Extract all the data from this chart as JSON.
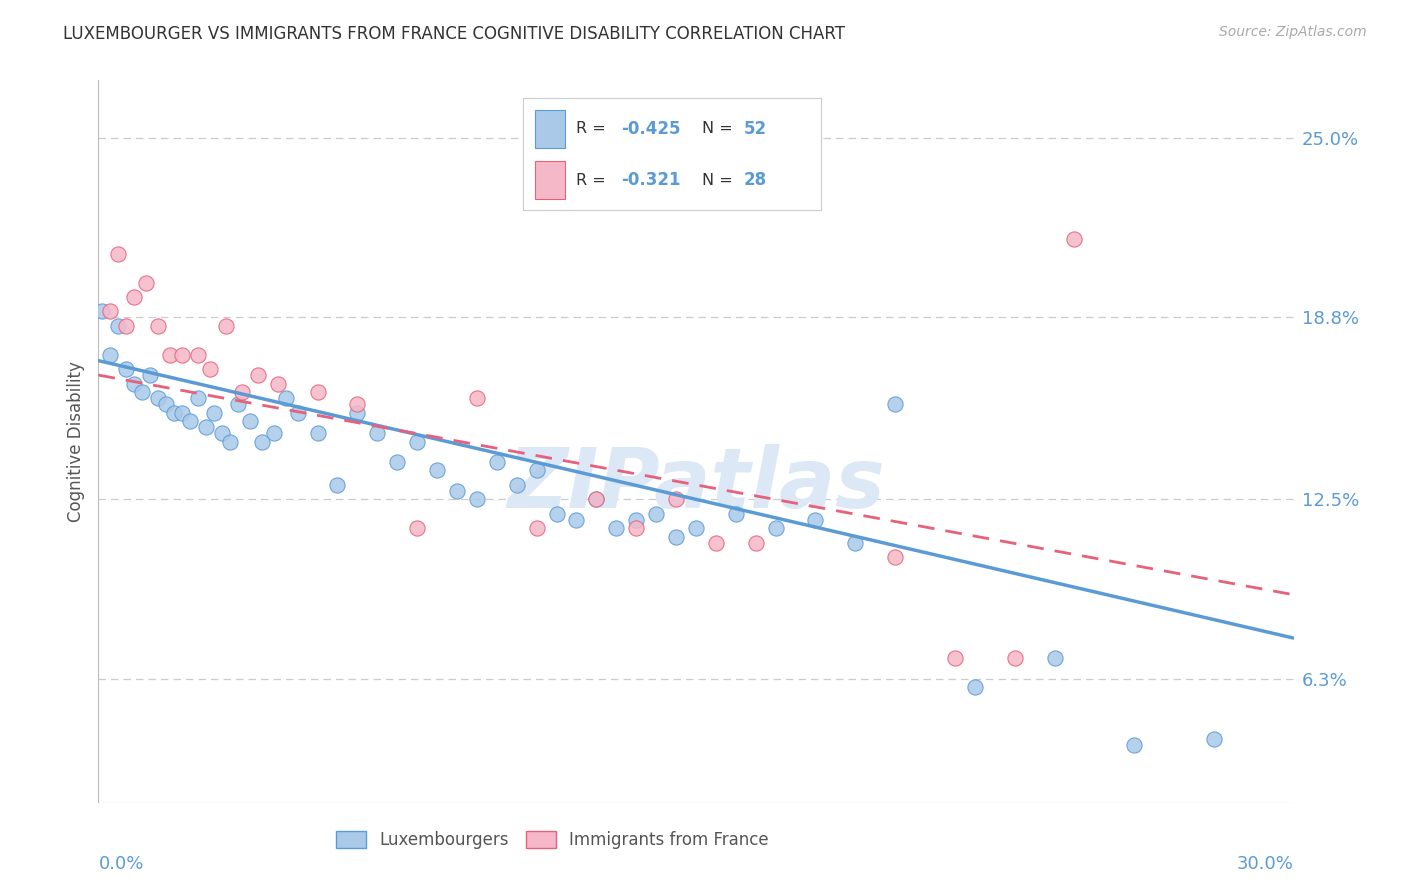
{
  "title": "LUXEMBOURGER VS IMMIGRANTS FROM FRANCE COGNITIVE DISABILITY CORRELATION CHART",
  "source": "Source: ZipAtlas.com",
  "ylabel": "Cognitive Disability",
  "yticks_labels": [
    "6.3%",
    "12.5%",
    "18.8%",
    "25.0%"
  ],
  "ytick_vals": [
    0.063,
    0.125,
    0.188,
    0.25
  ],
  "xmin": 0.0,
  "xmax": 0.3,
  "ymin": 0.02,
  "ymax": 0.27,
  "lux_R": "-0.425",
  "lux_N": "52",
  "france_R": "-0.321",
  "france_N": "28",
  "lux_color": "#aac9e8",
  "france_color": "#f5b8c8",
  "lux_line_color": "#5b9bd5",
  "france_line_color": "#e8607a",
  "watermark": "ZIPatlas",
  "lux_x": [
    0.001,
    0.003,
    0.005,
    0.007,
    0.009,
    0.011,
    0.013,
    0.015,
    0.017,
    0.019,
    0.021,
    0.023,
    0.025,
    0.027,
    0.029,
    0.031,
    0.033,
    0.035,
    0.038,
    0.041,
    0.044,
    0.047,
    0.05,
    0.055,
    0.06,
    0.065,
    0.07,
    0.075,
    0.08,
    0.085,
    0.09,
    0.095,
    0.1,
    0.105,
    0.11,
    0.115,
    0.12,
    0.125,
    0.13,
    0.135,
    0.14,
    0.145,
    0.15,
    0.16,
    0.17,
    0.18,
    0.19,
    0.2,
    0.22,
    0.24,
    0.26,
    0.28
  ],
  "lux_y": [
    0.19,
    0.175,
    0.185,
    0.17,
    0.165,
    0.162,
    0.168,
    0.16,
    0.158,
    0.155,
    0.155,
    0.152,
    0.16,
    0.15,
    0.155,
    0.148,
    0.145,
    0.158,
    0.152,
    0.145,
    0.148,
    0.16,
    0.155,
    0.148,
    0.13,
    0.155,
    0.148,
    0.138,
    0.145,
    0.135,
    0.128,
    0.125,
    0.138,
    0.13,
    0.135,
    0.12,
    0.118,
    0.125,
    0.115,
    0.118,
    0.12,
    0.112,
    0.115,
    0.12,
    0.115,
    0.118,
    0.11,
    0.158,
    0.06,
    0.07,
    0.04,
    0.042
  ],
  "france_x": [
    0.003,
    0.005,
    0.007,
    0.009,
    0.012,
    0.015,
    0.018,
    0.021,
    0.025,
    0.028,
    0.032,
    0.036,
    0.04,
    0.045,
    0.055,
    0.065,
    0.08,
    0.095,
    0.11,
    0.125,
    0.135,
    0.145,
    0.155,
    0.165,
    0.2,
    0.215,
    0.23,
    0.245
  ],
  "france_y": [
    0.19,
    0.21,
    0.185,
    0.195,
    0.2,
    0.185,
    0.175,
    0.175,
    0.175,
    0.17,
    0.185,
    0.162,
    0.168,
    0.165,
    0.162,
    0.158,
    0.115,
    0.16,
    0.115,
    0.125,
    0.115,
    0.125,
    0.11,
    0.11,
    0.105,
    0.07,
    0.07,
    0.215
  ],
  "lux_trend_x0": 0.0,
  "lux_trend_y0": 0.173,
  "lux_trend_x1": 0.3,
  "lux_trend_y1": 0.077,
  "france_trend_x0": 0.0,
  "france_trend_y0": 0.168,
  "france_trend_x1": 0.3,
  "france_trend_y1": 0.092
}
